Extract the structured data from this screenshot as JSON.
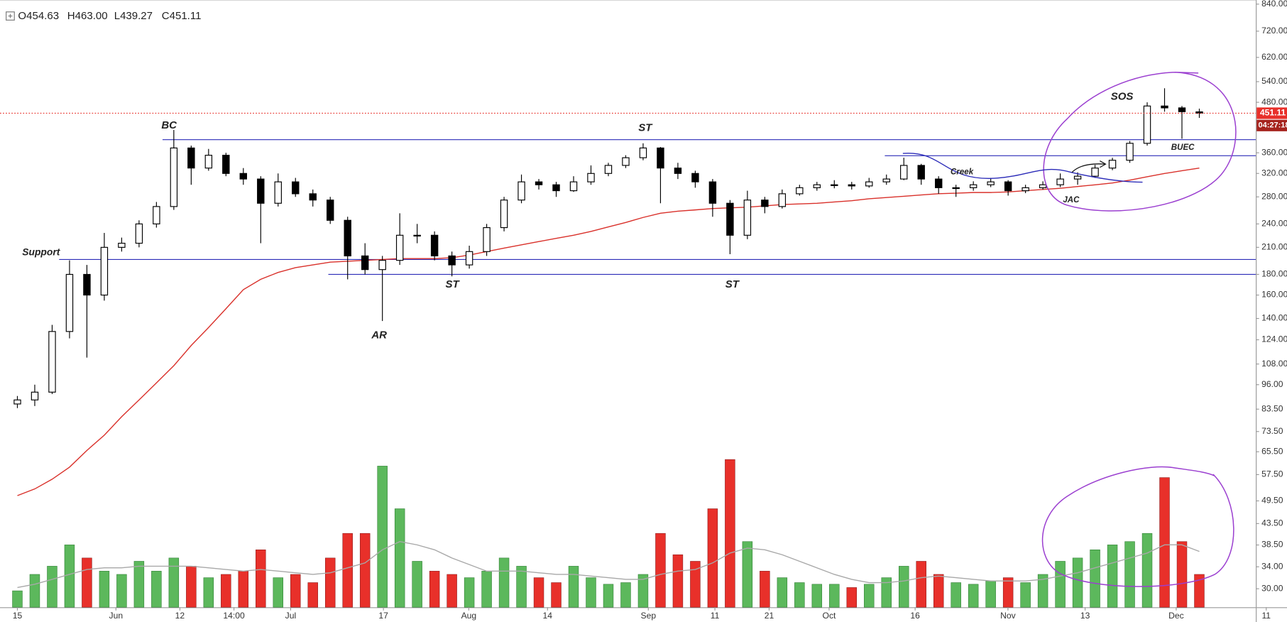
{
  "chart_data": {
    "type": "candlestick",
    "ohlc_labels": [
      "O454.63",
      "H463.00",
      "L439.27",
      "C451.11"
    ],
    "countdown": "04:27:18",
    "log_scale": true,
    "grid": false,
    "up_color": "#ffffff",
    "down_color": "#000000",
    "volume_up_color": "#5cb85c",
    "volume_down_color": "#e8302a",
    "ma_color": "#d9302a",
    "volume_ma_color": "#a8a8a8",
    "level_color": "#2b2bb8",
    "last_price_color": "#e8302a",
    "ylim": [
      27,
      860
    ],
    "yticks": [
      {
        "value": 840,
        "label": "840.00"
      },
      {
        "value": 720,
        "label": "720.00"
      },
      {
        "value": 620,
        "label": "620.00"
      },
      {
        "value": 540,
        "label": "540.00"
      },
      {
        "value": 480,
        "label": "480.00"
      },
      {
        "value": 360,
        "label": "360.00"
      },
      {
        "value": 320,
        "label": "320.00"
      },
      {
        "value": 280,
        "label": "280.00"
      },
      {
        "value": 240,
        "label": "240.00"
      },
      {
        "value": 210,
        "label": "210.00"
      },
      {
        "value": 180,
        "label": "180.00"
      },
      {
        "value": 160,
        "label": "160.00"
      },
      {
        "value": 140,
        "label": "140.00"
      },
      {
        "value": 124,
        "label": "124.00"
      },
      {
        "value": 108,
        "label": "108.00"
      },
      {
        "value": 96,
        "label": "96.00"
      },
      {
        "value": 83.5,
        "label": "83.50"
      },
      {
        "value": 73.5,
        "label": "73.50"
      },
      {
        "value": 65.5,
        "label": "65.50"
      },
      {
        "value": 57.5,
        "label": "57.50"
      },
      {
        "value": 49.5,
        "label": "49.50"
      },
      {
        "value": 43.5,
        "label": "43.50"
      },
      {
        "value": 38.5,
        "label": "38.50"
      },
      {
        "value": 34,
        "label": "34.00"
      },
      {
        "value": 30,
        "label": "30.00"
      }
    ],
    "xlim": [
      -1,
      71.25
    ],
    "xticks": [
      {
        "value": 0,
        "label": "15"
      },
      {
        "value": 5.67,
        "label": "Jun"
      },
      {
        "value": 9.35,
        "label": "12"
      },
      {
        "value": 12.46,
        "label": "14:00"
      },
      {
        "value": 15.72,
        "label": "Jul"
      },
      {
        "value": 21.06,
        "label": "17"
      },
      {
        "value": 25.97,
        "label": "Aug"
      },
      {
        "value": 30.5,
        "label": "14"
      },
      {
        "value": 36.3,
        "label": "Sep"
      },
      {
        "value": 40.13,
        "label": "11"
      },
      {
        "value": 43.25,
        "label": "21"
      },
      {
        "value": 46.7,
        "label": "Oct"
      },
      {
        "value": 51.65,
        "label": "16"
      },
      {
        "value": 56.99,
        "label": "Nov"
      },
      {
        "value": 61.43,
        "label": "13"
      },
      {
        "value": 66.67,
        "label": "Dec"
      },
      {
        "value": 71.85,
        "label": "11"
      }
    ],
    "open": [
      86,
      88,
      92,
      130,
      180,
      160,
      210,
      215,
      240,
      265,
      370,
      330,
      355,
      320,
      310,
      270,
      305,
      285,
      275,
      245,
      200,
      185,
      195,
      225,
      225,
      200,
      190,
      205,
      235,
      275,
      305,
      300,
      290,
      305,
      320,
      335,
      350,
      370,
      330,
      320,
      305,
      270,
      225,
      275,
      265,
      285,
      295,
      300,
      300,
      298,
      305,
      310,
      335,
      310,
      295,
      295,
      300,
      305,
      290,
      295,
      300,
      310,
      315,
      330,
      345,
      380,
      470,
      465,
      454.63
    ],
    "high": [
      90,
      96,
      135,
      195,
      190,
      228,
      222,
      245,
      272,
      410,
      375,
      368,
      360,
      330,
      315,
      320,
      312,
      292,
      280,
      250,
      215,
      200,
      255,
      240,
      230,
      205,
      212,
      240,
      280,
      318,
      310,
      305,
      315,
      335,
      340,
      355,
      380,
      372,
      340,
      325,
      310,
      275,
      290,
      280,
      292,
      300,
      305,
      308,
      305,
      312,
      318,
      350,
      338,
      315,
      300,
      306,
      312,
      308,
      300,
      306,
      320,
      322,
      336,
      350,
      385,
      480,
      520,
      470,
      463
    ],
    "low": [
      84,
      85,
      91,
      125,
      112,
      155,
      205,
      210,
      235,
      260,
      300,
      325,
      315,
      300,
      215,
      265,
      280,
      265,
      240,
      175,
      180,
      138,
      190,
      215,
      195,
      178,
      186,
      200,
      230,
      270,
      292,
      280,
      288,
      300,
      315,
      330,
      345,
      270,
      310,
      295,
      250,
      202,
      220,
      255,
      262,
      282,
      290,
      294,
      292,
      295,
      300,
      308,
      300,
      285,
      280,
      290,
      296,
      282,
      286,
      292,
      296,
      300,
      312,
      326,
      340,
      375,
      455,
      390,
      439.27
    ],
    "close": [
      88,
      92,
      130,
      180,
      160,
      210,
      215,
      240,
      265,
      370,
      330,
      355,
      320,
      310,
      270,
      305,
      285,
      275,
      245,
      200,
      185,
      195,
      225,
      225,
      200,
      190,
      205,
      235,
      275,
      305,
      300,
      290,
      305,
      320,
      335,
      350,
      370,
      330,
      320,
      305,
      270,
      225,
      275,
      265,
      285,
      295,
      300,
      300,
      298,
      305,
      310,
      335,
      310,
      295,
      295,
      300,
      305,
      290,
      295,
      300,
      310,
      315,
      330,
      345,
      380,
      470,
      465,
      455,
      451.11
    ],
    "ma": [
      51,
      53,
      56,
      60,
      66,
      72,
      80,
      88,
      97,
      107,
      120,
      133,
      148,
      165,
      175,
      182,
      187,
      190,
      193,
      194,
      195,
      196,
      197,
      197,
      197,
      198,
      201,
      205,
      209,
      213,
      217,
      221,
      225,
      230,
      236,
      242,
      249,
      255,
      258,
      260,
      262,
      263,
      264,
      266,
      268,
      269,
      270,
      272,
      274,
      277,
      279,
      281,
      283,
      285,
      286,
      287,
      287,
      288,
      290,
      292,
      294,
      297,
      300,
      303,
      308,
      314,
      320,
      325,
      330
    ],
    "vlim": [
      0,
      100
    ],
    "volume": [
      10,
      20,
      25,
      38,
      30,
      22,
      20,
      28,
      22,
      30,
      25,
      18,
      20,
      22,
      35,
      18,
      20,
      15,
      30,
      45,
      45,
      86,
      60,
      28,
      22,
      20,
      18,
      22,
      30,
      25,
      18,
      15,
      25,
      18,
      14,
      15,
      20,
      45,
      32,
      28,
      60,
      90,
      40,
      22,
      18,
      15,
      14,
      14,
      12,
      14,
      18,
      25,
      28,
      20,
      15,
      14,
      16,
      18,
      15,
      20,
      28,
      30,
      35,
      38,
      40,
      45,
      79,
      40,
      20
    ],
    "volume_ma": [
      12,
      14,
      17,
      20,
      23,
      24,
      24,
      25,
      25,
      25,
      25,
      24,
      23,
      22,
      23,
      22,
      21,
      20,
      21,
      24,
      27,
      35,
      40,
      38,
      35,
      30,
      26,
      22,
      22,
      22,
      21,
      20,
      20,
      19,
      18,
      17,
      17,
      20,
      22,
      23,
      27,
      33,
      36,
      35,
      32,
      28,
      24,
      20,
      17,
      15,
      15,
      16,
      18,
      19,
      18,
      17,
      16,
      16,
      16,
      17,
      19,
      21,
      24,
      27,
      30,
      33,
      38,
      38,
      34
    ],
    "levels": [
      388,
      354,
      196,
      180
    ],
    "annotations": [
      "BC",
      "ST",
      "Support",
      "ST",
      "AR",
      "ST",
      "Creek",
      "JAC",
      "SOS",
      "BUEC"
    ]
  }
}
